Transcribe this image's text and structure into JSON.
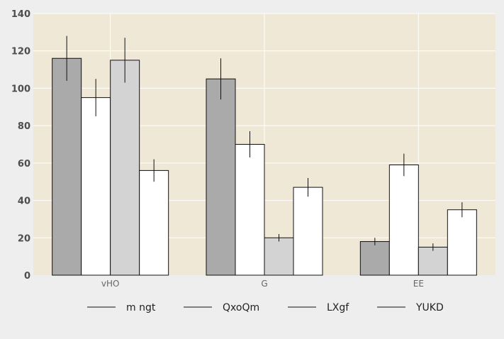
{
  "chart_data": {
    "type": "bar",
    "categories": [
      "vHO",
      "G",
      "EE"
    ],
    "series": [
      {
        "name": "m ngt",
        "values": [
          116,
          105,
          18
        ],
        "errors": [
          12,
          11,
          2
        ],
        "color": "#aaaaaa"
      },
      {
        "name": "QxoQm",
        "values": [
          95,
          70,
          59
        ],
        "errors": [
          10,
          7,
          6
        ],
        "color": "#ffffff"
      },
      {
        "name": "LXgf",
        "values": [
          115,
          20,
          15
        ],
        "errors": [
          12,
          2,
          2
        ],
        "color": "#d3d3d3"
      },
      {
        "name": "YUKD",
        "values": [
          56,
          47,
          35
        ],
        "errors": [
          6,
          5,
          4
        ],
        "color": "#ffffff"
      }
    ],
    "ylim": [
      0,
      140
    ],
    "yticks": [
      "0",
      "20",
      "40",
      "60",
      "80",
      "100",
      "120",
      "140"
    ],
    "title": "",
    "xlabel": "",
    "ylabel": "",
    "grid": true,
    "legend_position": "bottom",
    "plot_background": "#efe8d7",
    "page_background": "#eeeeee"
  }
}
